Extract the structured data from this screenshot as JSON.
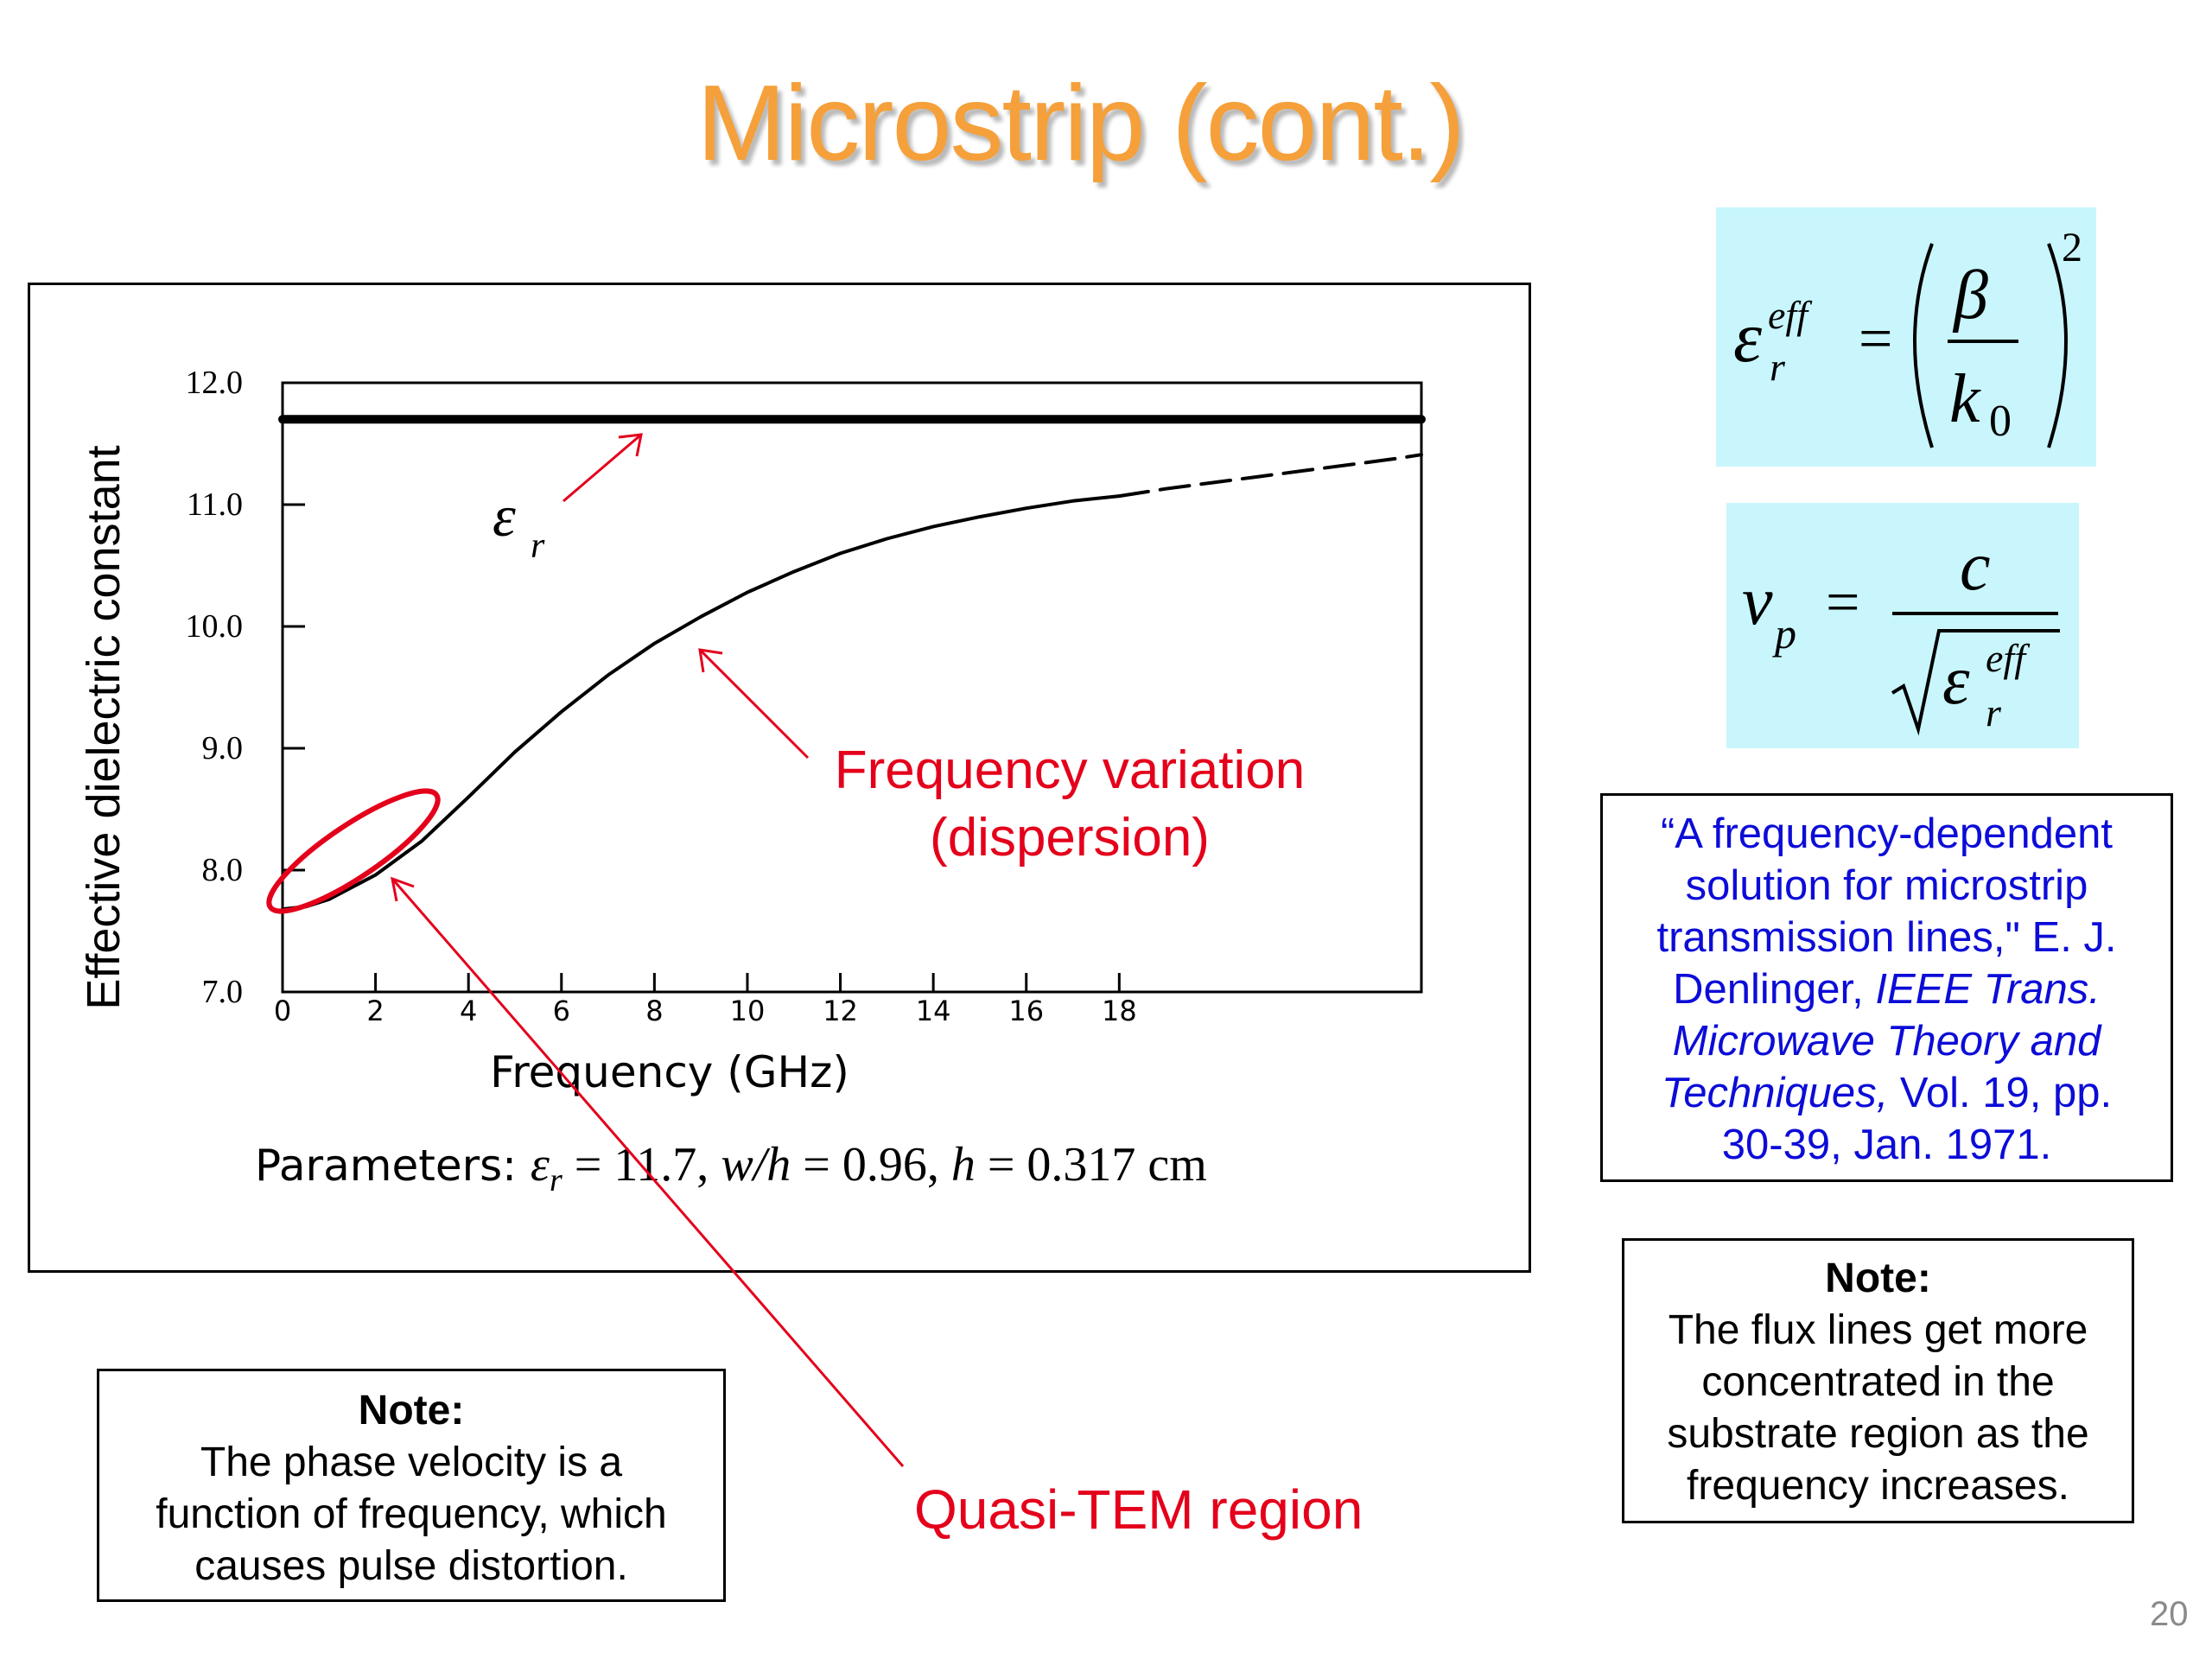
{
  "slide": {
    "title": "Microstrip (cont.)",
    "page_number": "20",
    "colors": {
      "title": "#f5a03a",
      "annotation_red": "#e4001b",
      "reference_blue": "#0c0cd8",
      "equation_bg": "#c8f6fc"
    }
  },
  "chart_data": {
    "type": "line",
    "ylabel": "Effective dielectric constant",
    "xlabel": "Frequency (GHz)",
    "xlim": [
      0,
      24.5
    ],
    "ylim": [
      7.0,
      12.0
    ],
    "x_ticks": [
      0,
      2,
      4,
      6,
      8,
      10,
      12,
      14,
      16,
      18
    ],
    "x_tick_labels": [
      "0",
      "2",
      "4",
      "6",
      "8",
      "10",
      "12",
      "14",
      "16",
      "18"
    ],
    "y_ticks": [
      7.0,
      8.0,
      9.0,
      10.0,
      11.0,
      12.0
    ],
    "y_tick_labels": [
      "7.0",
      "8.0",
      "9.0",
      "10.0",
      "11.0",
      "12.0"
    ],
    "grid": false,
    "series": [
      {
        "name": "εr",
        "style": "solid-thick",
        "x": [
          0,
          24.5
        ],
        "y": [
          11.7,
          11.7
        ]
      },
      {
        "style": "solid",
        "x": [
          0,
          0.5,
          1,
          2,
          3,
          4,
          5,
          6,
          7,
          8,
          9,
          10,
          11,
          12,
          13,
          14,
          15,
          16,
          17,
          18
        ],
        "y": [
          7.68,
          7.7,
          7.76,
          7.96,
          8.24,
          8.6,
          8.97,
          9.3,
          9.6,
          9.86,
          10.08,
          10.28,
          10.45,
          10.6,
          10.72,
          10.82,
          10.9,
          10.97,
          11.03,
          11.07
        ]
      },
      {
        "style": "dashed",
        "x": [
          18,
          19,
          20,
          21,
          22,
          23,
          24,
          24.5
        ],
        "y": [
          11.07,
          11.13,
          11.18,
          11.23,
          11.28,
          11.33,
          11.38,
          11.41
        ]
      }
    ],
    "annotations": {
      "eps_r_label": "εr",
      "dispersion_line1": "Frequency variation",
      "dispersion_line2": "(dispersion)",
      "quasi_tem_label": "Quasi-TEM region"
    },
    "parameters_text": {
      "prefix": "Parameters: ",
      "eps": "ε",
      "eps_sub": "r",
      "rest1": " = 11.7, ",
      "wh": "w/h",
      "rest2": " = 0.96, ",
      "h": "h",
      "rest3": " = 0.317 cm"
    }
  },
  "equations": {
    "eq1": {
      "eps": "ε",
      "sup": "eff",
      "sub": "r",
      "equals": "=",
      "numerator": "β",
      "denominator": "k",
      "den_sub": "0",
      "power": "2"
    },
    "eq2": {
      "v": "v",
      "v_sub": "p",
      "equals": "=",
      "numerator": "c",
      "eps": "ε",
      "sup": "eff",
      "sub": "r"
    }
  },
  "reference": {
    "line1": "“A frequency-dependent",
    "line2": "solution for microstrip",
    "line3": "transmission lines,\" E. J.",
    "line4_plain": "Denlinger, ",
    "line4_italic": "IEEE Trans.",
    "line5_italic": "Microwave Theory and",
    "line6_italic": "Techniques,",
    "line6_plain": " Vol. 19, pp.",
    "line7": "30-39, Jan. 1971."
  },
  "note_right": {
    "title": "Note:",
    "lines": [
      "The flux lines get more",
      "concentrated in the",
      "substrate region as the",
      "frequency increases."
    ]
  },
  "note_left": {
    "title": "Note:",
    "lines": [
      "The phase velocity is a",
      "function of frequency, which",
      "causes pulse distortion."
    ]
  }
}
